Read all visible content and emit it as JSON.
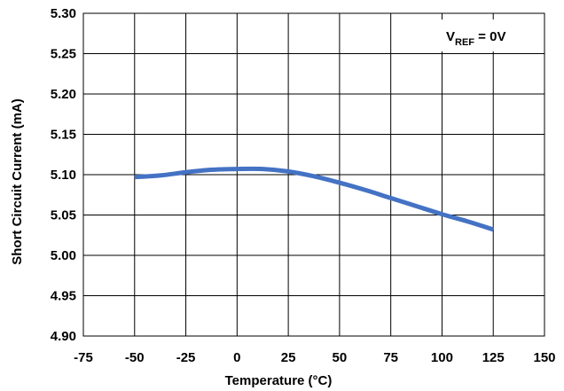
{
  "chart_data": {
    "type": "line",
    "title": "",
    "xlabel": "Temperature (°C)",
    "ylabel": "Short Circuit Current (mA)",
    "xlim": [
      -75,
      150
    ],
    "ylim": [
      4.9,
      5.3
    ],
    "x_ticks": [
      -75,
      -50,
      -25,
      0,
      25,
      50,
      75,
      100,
      125,
      150
    ],
    "y_ticks": [
      4.9,
      4.95,
      5.0,
      5.05,
      5.1,
      5.15,
      5.2,
      5.25,
      5.3
    ],
    "x_tick_labels": [
      "-75",
      "-50",
      "-25",
      "0",
      "25",
      "50",
      "75",
      "100",
      "125",
      "150"
    ],
    "y_tick_labels": [
      "4.90",
      "4.95",
      "5.00",
      "5.05",
      "5.10",
      "5.15",
      "5.20",
      "5.25",
      "5.30"
    ],
    "grid": true,
    "legend": "none",
    "series": [
      {
        "color": "#4472C4",
        "x": [
          -50,
          -37.5,
          -25,
          -12.5,
          0,
          12.5,
          25,
          37.5,
          50,
          62.5,
          75,
          87.5,
          100,
          112.5,
          125
        ],
        "y": [
          5.097,
          5.099,
          5.103,
          5.106,
          5.107,
          5.107,
          5.104,
          5.098,
          5.09,
          5.081,
          5.071,
          5.061,
          5.051,
          5.042,
          5.032
        ]
      }
    ],
    "annotation": {
      "prefix": "V",
      "subscript": "REF",
      "suffix": " = 0V",
      "position": "top-right"
    }
  }
}
